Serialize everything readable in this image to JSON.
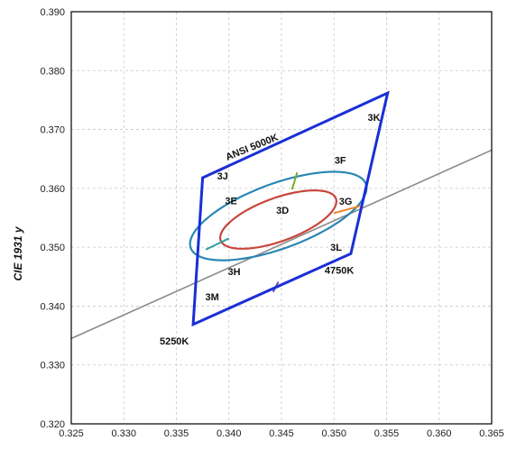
{
  "chart_data": {
    "type": "line",
    "title": "",
    "xlabel": "",
    "ylabel": "CIE 1931 y",
    "xlim": [
      0.325,
      0.365
    ],
    "ylim": [
      0.32,
      0.39
    ],
    "x_ticks": [
      "0.325",
      "0.330",
      "0.335",
      "0.340",
      "0.345",
      "0.350",
      "0.355",
      "0.360",
      "0.365"
    ],
    "y_ticks": [
      "0.320",
      "0.330",
      "0.340",
      "0.350",
      "0.360",
      "0.370",
      "0.380",
      "0.390"
    ],
    "grid": true,
    "colors": {
      "quadrangle": "#1a2fd6",
      "blackbody": "#8a8a8a",
      "outer_ellipse": "#2a86b4",
      "inner_ellipse": "#c8463c",
      "divider_green": "#7aaa2a",
      "divider_orange": "#e8862a",
      "divider_purple": "#6a4aa0",
      "divider_teal": "#2aa0a0"
    },
    "blackbody_line": [
      [
        0.325,
        0.3345
      ],
      [
        0.365,
        0.3665
      ]
    ],
    "quadrangle": [
      [
        0.3375,
        0.3618
      ],
      [
        0.3551,
        0.3762
      ],
      [
        0.3516,
        0.3489
      ],
      [
        0.3366,
        0.3369
      ]
    ],
    "outer_ellipse": {
      "center": [
        0.3447,
        0.3553
      ],
      "a": 0.0102,
      "b": 0.0048,
      "angle_deg": 40
    },
    "inner_ellipse": {
      "center": [
        0.3447,
        0.3547
      ],
      "a": 0.0067,
      "b": 0.0032,
      "angle_deg": 40
    },
    "dividers": [
      {
        "name": "green",
        "points": [
          [
            0.346,
            0.3598
          ],
          [
            0.3465,
            0.3627
          ]
        ]
      },
      {
        "name": "orange",
        "points": [
          [
            0.35,
            0.3558
          ],
          [
            0.3527,
            0.3571
          ]
        ]
      },
      {
        "name": "purple",
        "points": [
          [
            0.3447,
            0.3441
          ],
          [
            0.3442,
            0.3424
          ]
        ]
      },
      {
        "name": "teal",
        "points": [
          [
            0.3378,
            0.3496
          ],
          [
            0.34,
            0.3515
          ]
        ]
      }
    ],
    "region_labels": [
      {
        "text": "3K",
        "x": 0.3538,
        "y": 0.3715
      },
      {
        "text": "3J",
        "x": 0.3394,
        "y": 0.3615
      },
      {
        "text": "3F",
        "x": 0.3506,
        "y": 0.3642
      },
      {
        "text": "3E",
        "x": 0.3402,
        "y": 0.3573
      },
      {
        "text": "3D",
        "x": 0.3451,
        "y": 0.3557
      },
      {
        "text": "3G",
        "x": 0.3511,
        "y": 0.3572
      },
      {
        "text": "3L",
        "x": 0.3502,
        "y": 0.3494
      },
      {
        "text": "3H",
        "x": 0.3405,
        "y": 0.3453
      },
      {
        "text": "3M",
        "x": 0.3384,
        "y": 0.341
      }
    ],
    "cct_labels": [
      {
        "text": "ANSI 5000K",
        "x": 0.3423,
        "y": 0.3665,
        "rotate": -22
      },
      {
        "text": "4750K",
        "x": 0.3505,
        "y": 0.3455,
        "rotate": 0
      },
      {
        "text": "5250K",
        "x": 0.3348,
        "y": 0.3335,
        "rotate": 0
      }
    ]
  }
}
